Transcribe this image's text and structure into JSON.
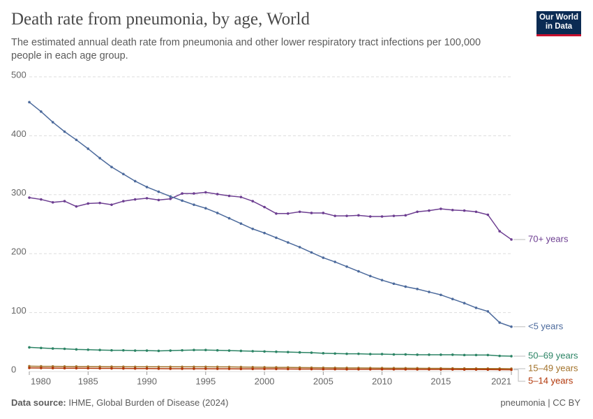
{
  "chart_data": {
    "type": "line",
    "title": "Death rate from pneumonia, by age, World",
    "subtitle": "The estimated annual death rate from pneumonia and other lower respiratory tract infections per 100,000 people in each age group.",
    "logo": "Our World in Data",
    "source_label": "Data source:",
    "source": "IHME, Global Burden of Disease (2024)",
    "footer_right": "pneumonia | CC BY",
    "x": [
      1980,
      1981,
      1982,
      1983,
      1984,
      1985,
      1986,
      1987,
      1988,
      1989,
      1990,
      1991,
      1992,
      1993,
      1994,
      1995,
      1996,
      1997,
      1998,
      1999,
      2000,
      2001,
      2002,
      2003,
      2004,
      2005,
      2006,
      2007,
      2008,
      2009,
      2010,
      2011,
      2012,
      2013,
      2014,
      2015,
      2016,
      2017,
      2018,
      2019,
      2020,
      2021
    ],
    "xlim": [
      1980,
      2021
    ],
    "xticks": [
      1980,
      1985,
      1990,
      1995,
      2000,
      2005,
      2010,
      2015,
      2021
    ],
    "ylim": [
      0,
      500
    ],
    "yticks": [
      0,
      100,
      200,
      300,
      400,
      500
    ],
    "grid": true,
    "series": [
      {
        "name": "70+ years",
        "color": "#6d3e91",
        "values": [
          295,
          292,
          287,
          289,
          280,
          285,
          286,
          283,
          289,
          292,
          294,
          291,
          293,
          302,
          302,
          304,
          301,
          298,
          296,
          289,
          279,
          268,
          268,
          271,
          269,
          269,
          264,
          264,
          265,
          263,
          263,
          264,
          265,
          271,
          273,
          276,
          274,
          273,
          271,
          266,
          238,
          224
        ]
      },
      {
        "name": "<5 years",
        "color": "#4c6a9c",
        "values": [
          457,
          441,
          423,
          407,
          393,
          378,
          362,
          347,
          335,
          323,
          313,
          305,
          297,
          290,
          283,
          277,
          269,
          260,
          251,
          242,
          235,
          227,
          219,
          211,
          202,
          193,
          186,
          178,
          170,
          162,
          155,
          149,
          144,
          140,
          135,
          130,
          123,
          116,
          108,
          102,
          83,
          76
        ]
      },
      {
        "name": "50–69 years",
        "color": "#2c8465",
        "values": [
          41,
          40,
          39,
          38.5,
          37.5,
          37,
          36.5,
          36,
          36,
          35.5,
          35.5,
          35,
          35.5,
          36,
          36.5,
          36.5,
          36,
          35.5,
          35,
          34.5,
          34,
          33.5,
          33,
          32.5,
          32,
          31,
          30.5,
          30,
          30,
          29.5,
          29.5,
          29,
          29,
          28.5,
          28.5,
          28.5,
          28.5,
          28,
          28,
          28,
          26.5,
          26
        ]
      },
      {
        "name": "15–49 years",
        "color": "#a2722a",
        "values": [
          9,
          8.8,
          8.7,
          8.6,
          8.5,
          8.4,
          8.3,
          8.2,
          8.1,
          8,
          8,
          8,
          8,
          8,
          8,
          8,
          7.9,
          7.8,
          7.6,
          7.4,
          7.2,
          7,
          6.9,
          6.7,
          6.5,
          6.3,
          6.2,
          6.1,
          6,
          5.9,
          5.8,
          5.7,
          5.6,
          5.5,
          5.4,
          5.3,
          5.2,
          5.1,
          5,
          5,
          5,
          4.8
        ]
      },
      {
        "name": "5–14 years",
        "color": "#b13507",
        "values": [
          6,
          5.9,
          5.8,
          5.7,
          5.6,
          5.5,
          5.4,
          5.3,
          5.2,
          5.1,
          5,
          4.9,
          4.8,
          4.8,
          4.7,
          4.7,
          4.6,
          4.6,
          4.5,
          4.5,
          4.4,
          4.4,
          4.3,
          4.2,
          4.1,
          4,
          4,
          3.9,
          3.9,
          3.8,
          3.8,
          3.7,
          3.7,
          3.6,
          3.6,
          3.5,
          3.5,
          3.4,
          3.4,
          3.3,
          3.1,
          3
        ]
      }
    ]
  }
}
